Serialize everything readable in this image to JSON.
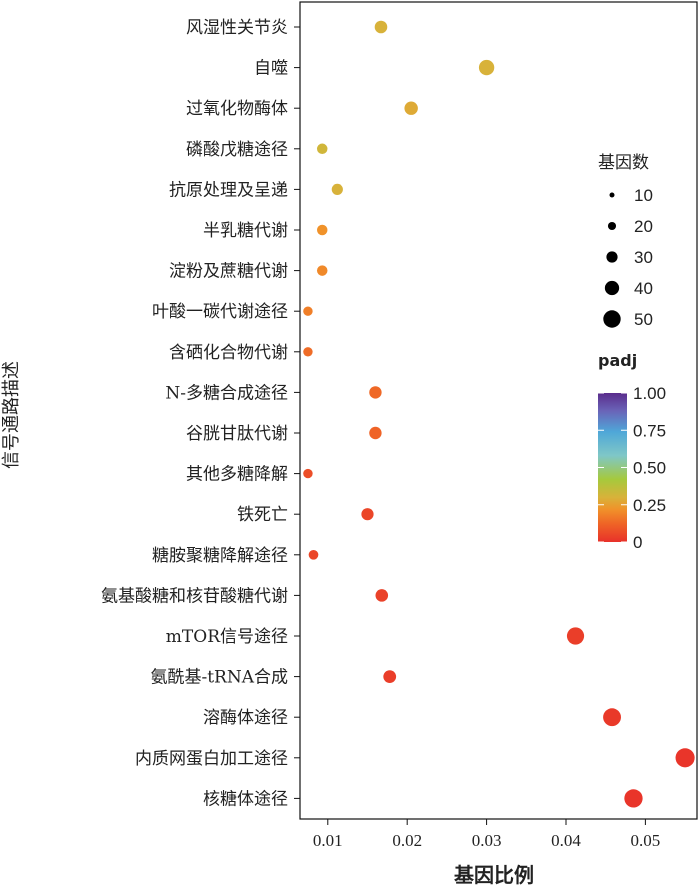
{
  "chart_data": {
    "type": "scatter",
    "xlabel": "基因比例",
    "ylabel": "信号通路描述",
    "xlim": [
      0.0065,
      0.0565
    ],
    "xticks": [
      "0.01",
      "0.02",
      "0.03",
      "0.04",
      "0.05"
    ],
    "xtick_values": [
      0.01,
      0.02,
      0.03,
      0.04,
      0.05
    ],
    "categories": [
      "风湿性关节炎",
      "自噬",
      "过氧化物酶体",
      "磷酸戊糖途径",
      "抗原处理及呈递",
      "半乳糖代谢",
      "淀粉及蔗糖代谢",
      "叶酸一碳代谢途径",
      "含硒化合物代谢",
      "N-多糖合成途径",
      "谷胱甘肽代谢",
      "其他多糖降解",
      "铁死亡",
      "糖胺聚糖降解途径",
      "氨基酸糖和核苷酸糖代谢",
      "mTOR信号途径",
      "氨酰基-tRNA合成",
      "溶酶体途径",
      "内质网蛋白加工途径",
      "核糖体途径"
    ],
    "points": [
      {
        "category": "风湿性关节炎",
        "gene_ratio": 0.0167,
        "count": 22,
        "padj": 0.3
      },
      {
        "category": "自噬",
        "gene_ratio": 0.03,
        "count": 40,
        "padj": 0.3
      },
      {
        "category": "过氧化物酶体",
        "gene_ratio": 0.0205,
        "count": 27,
        "padj": 0.28
      },
      {
        "category": "磷酸戊糖途径",
        "gene_ratio": 0.0093,
        "count": 12,
        "padj": 0.32
      },
      {
        "category": "抗原处理及呈递",
        "gene_ratio": 0.0112,
        "count": 15,
        "padj": 0.3
      },
      {
        "category": "半乳糖代谢",
        "gene_ratio": 0.0093,
        "count": 12,
        "padj": 0.22
      },
      {
        "category": "淀粉及蔗糖代谢",
        "gene_ratio": 0.0093,
        "count": 12,
        "padj": 0.2
      },
      {
        "category": "叶酸一碳代谢途径",
        "gene_ratio": 0.0075,
        "count": 8,
        "padj": 0.18
      },
      {
        "category": "含硒化合物代谢",
        "gene_ratio": 0.0075,
        "count": 8,
        "padj": 0.14
      },
      {
        "category": "N-多糖合成途径",
        "gene_ratio": 0.016,
        "count": 21,
        "padj": 0.13
      },
      {
        "category": "谷胱甘肽代谢",
        "gene_ratio": 0.016,
        "count": 21,
        "padj": 0.12
      },
      {
        "category": "其他多糖降解",
        "gene_ratio": 0.0075,
        "count": 8,
        "padj": 0.07
      },
      {
        "category": "铁死亡",
        "gene_ratio": 0.015,
        "count": 20,
        "padj": 0.05
      },
      {
        "category": "糖胺聚糖降解途径",
        "gene_ratio": 0.0082,
        "count": 9,
        "padj": 0.05
      },
      {
        "category": "氨基酸糖和核苷酸糖代谢",
        "gene_ratio": 0.0168,
        "count": 22,
        "padj": 0.04
      },
      {
        "category": "mTOR信号途径",
        "gene_ratio": 0.0412,
        "count": 55,
        "padj": 0.03
      },
      {
        "category": "氨酰基-tRNA合成",
        "gene_ratio": 0.0178,
        "count": 23,
        "padj": 0.03
      },
      {
        "category": "溶酶体途径",
        "gene_ratio": 0.0458,
        "count": 61,
        "padj": 0.02
      },
      {
        "category": "内质网蛋白加工途径",
        "gene_ratio": 0.055,
        "count": 73,
        "padj": 0.01
      },
      {
        "category": "核糖体途径",
        "gene_ratio": 0.0485,
        "count": 65,
        "padj": 0.01
      }
    ],
    "legend": {
      "size_title": "基因数",
      "size_values": [
        "10",
        "20",
        "30",
        "40",
        "50"
      ],
      "color_title": "padj",
      "color_ticks": [
        "1.00",
        "0.75",
        "0.50",
        "0.25",
        "0"
      ],
      "color_tick_values": [
        1.0,
        0.75,
        0.5,
        0.25,
        0
      ],
      "colors": [
        "#e8312a",
        "#ef6326",
        "#f0922a",
        "#d8b23a",
        "#a6c93c",
        "#7fc7c7",
        "#4fa7d8",
        "#6a64b8",
        "#5a2c8c"
      ],
      "placement": "right"
    },
    "grid": false
  }
}
